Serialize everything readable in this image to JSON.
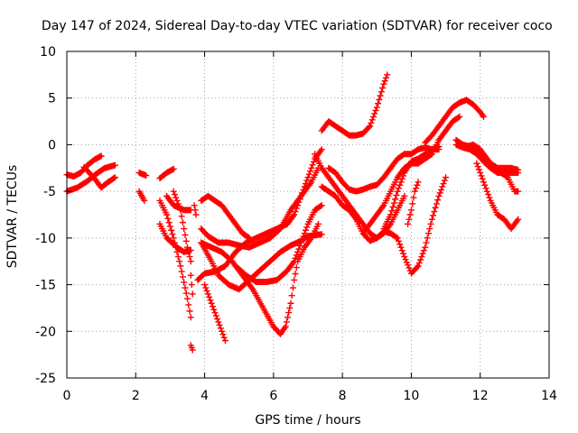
{
  "chart_data": {
    "type": "scatter",
    "title": "Day 147 of 2024, Sidereal Day-to-day VTEC variation (SDTVAR) for receiver coco",
    "xlabel": "GPS time / hours",
    "ylabel": "SDTVAR / TECUs",
    "xlim": [
      0,
      14
    ],
    "ylim": [
      -25,
      10
    ],
    "x_ticks": [
      "0",
      "2",
      "4",
      "6",
      "8",
      "10",
      "12",
      "14"
    ],
    "y_ticks": [
      "10",
      "5",
      "0",
      "-5",
      "-10",
      "-15",
      "-20",
      "-25"
    ],
    "grid": true,
    "marker": "plus",
    "color": "#ff0000",
    "series": [
      {
        "points": [
          [
            0.0,
            -3.2
          ],
          [
            0.2,
            -3.4
          ],
          [
            0.4,
            -3.0
          ],
          [
            0.6,
            -2.2
          ],
          [
            0.8,
            -1.6
          ],
          [
            1.0,
            -1.2
          ]
        ]
      },
      {
        "points": [
          [
            0.0,
            -5.0
          ],
          [
            0.3,
            -4.6
          ],
          [
            0.6,
            -3.9
          ],
          [
            0.9,
            -3.0
          ],
          [
            1.1,
            -2.5
          ],
          [
            1.4,
            -2.2
          ]
        ]
      },
      {
        "points": [
          [
            0.5,
            -2.4
          ],
          [
            0.8,
            -3.6
          ],
          [
            1.0,
            -4.6
          ],
          [
            1.2,
            -4.0
          ],
          [
            1.4,
            -3.5
          ]
        ]
      },
      {
        "points": [
          [
            2.1,
            -3.0
          ],
          [
            2.3,
            -3.3
          ]
        ]
      },
      {
        "points": [
          [
            2.1,
            -5.0
          ],
          [
            2.25,
            -6.0
          ]
        ]
      },
      {
        "points": [
          [
            2.7,
            -3.6
          ],
          [
            2.9,
            -3.0
          ],
          [
            3.1,
            -2.6
          ]
        ]
      },
      {
        "points": [
          [
            2.7,
            -6.0
          ],
          [
            2.9,
            -7.5
          ],
          [
            3.1,
            -10.0
          ],
          [
            3.3,
            -13.0
          ],
          [
            3.5,
            -16.5
          ],
          [
            3.6,
            -18.5
          ]
        ]
      },
      {
        "points": [
          [
            2.7,
            -8.5
          ],
          [
            2.9,
            -10.0
          ],
          [
            3.2,
            -11.0
          ],
          [
            3.4,
            -11.5
          ],
          [
            3.6,
            -11.3
          ]
        ]
      },
      {
        "points": [
          [
            2.9,
            -5.5
          ],
          [
            3.1,
            -6.5
          ],
          [
            3.4,
            -7.0
          ],
          [
            3.6,
            -7.0
          ]
        ]
      },
      {
        "points": [
          [
            3.1,
            -5.0
          ],
          [
            3.3,
            -7.0
          ],
          [
            3.5,
            -11.0
          ],
          [
            3.6,
            -12.5
          ]
        ]
      },
      {
        "points": [
          [
            3.6,
            -14.0
          ],
          [
            3.65,
            -16.0
          ]
        ]
      },
      {
        "points": [
          [
            3.6,
            -21.5
          ],
          [
            3.65,
            -22.0
          ]
        ]
      },
      {
        "points": [
          [
            3.7,
            -6.5
          ],
          [
            3.75,
            -7.5
          ]
        ]
      },
      {
        "points": [
          [
            3.8,
            -14.5
          ],
          [
            4.0,
            -13.8
          ],
          [
            4.3,
            -13.6
          ],
          [
            4.6,
            -13.0
          ],
          [
            4.9,
            -11.5
          ],
          [
            5.2,
            -10.5
          ],
          [
            5.5,
            -10.0
          ],
          [
            5.8,
            -9.5
          ],
          [
            6.1,
            -9.0
          ],
          [
            6.4,
            -8.5
          ],
          [
            6.6,
            -7.5
          ],
          [
            6.8,
            -5.5
          ],
          [
            7.0,
            -3.5
          ],
          [
            7.2,
            -1.5
          ],
          [
            7.4,
            -0.5
          ]
        ]
      },
      {
        "points": [
          [
            3.9,
            -9.0
          ],
          [
            4.1,
            -9.8
          ],
          [
            4.4,
            -10.5
          ],
          [
            4.7,
            -10.5
          ],
          [
            5.0,
            -10.8
          ],
          [
            5.3,
            -11.0
          ],
          [
            5.6,
            -10.5
          ],
          [
            5.9,
            -10.0
          ],
          [
            6.2,
            -9.0
          ],
          [
            6.5,
            -7.0
          ],
          [
            6.8,
            -5.5
          ],
          [
            7.1,
            -4.0
          ],
          [
            7.3,
            -2.5
          ]
        ]
      },
      {
        "points": [
          [
            3.9,
            -10.5
          ],
          [
            4.2,
            -11.0
          ],
          [
            4.5,
            -11.5
          ],
          [
            4.8,
            -12.5
          ],
          [
            5.1,
            -14.0
          ],
          [
            5.4,
            -15.5
          ],
          [
            5.7,
            -17.5
          ],
          [
            6.0,
            -19.5
          ],
          [
            6.2,
            -20.3
          ],
          [
            6.35,
            -19.5
          ],
          [
            6.5,
            -17.0
          ],
          [
            6.6,
            -14.5
          ],
          [
            6.7,
            -12.5
          ],
          [
            6.9,
            -11.0
          ],
          [
            7.1,
            -10.0
          ],
          [
            7.3,
            -8.5
          ]
        ]
      },
      {
        "points": [
          [
            3.9,
            -6.0
          ],
          [
            4.1,
            -5.5
          ],
          [
            4.3,
            -6.0
          ],
          [
            4.5,
            -6.5
          ],
          [
            4.7,
            -7.5
          ],
          [
            4.9,
            -8.5
          ],
          [
            5.1,
            -9.5
          ],
          [
            5.3,
            -10.0
          ]
        ]
      },
      {
        "points": [
          [
            3.9,
            -10.5
          ],
          [
            4.2,
            -12.5
          ],
          [
            4.4,
            -14.0
          ],
          [
            4.7,
            -15.0
          ],
          [
            5.0,
            -15.5
          ],
          [
            5.3,
            -14.5
          ],
          [
            5.6,
            -13.5
          ],
          [
            5.9,
            -12.5
          ],
          [
            6.2,
            -11.5
          ],
          [
            6.5,
            -10.8
          ],
          [
            6.8,
            -10.3
          ],
          [
            7.0,
            -9.8
          ],
          [
            7.4,
            -9.6
          ]
        ]
      },
      {
        "points": [
          [
            4.0,
            -15.0
          ],
          [
            4.2,
            -17.0
          ],
          [
            4.4,
            -19.0
          ],
          [
            4.6,
            -21.0
          ]
        ]
      },
      {
        "points": [
          [
            4.9,
            -13.0
          ],
          [
            5.2,
            -14.0
          ],
          [
            5.5,
            -14.7
          ],
          [
            5.8,
            -14.7
          ],
          [
            6.1,
            -14.5
          ],
          [
            6.4,
            -13.5
          ],
          [
            6.6,
            -12.5
          ],
          [
            6.8,
            -10.5
          ],
          [
            7.0,
            -8.5
          ],
          [
            7.2,
            -7.0
          ],
          [
            7.4,
            -6.5
          ]
        ]
      },
      {
        "points": [
          [
            7.2,
            -1.0
          ],
          [
            7.4,
            -2.5
          ],
          [
            7.6,
            -3.5
          ],
          [
            7.8,
            -4.5
          ],
          [
            8.0,
            -5.5
          ],
          [
            8.2,
            -6.5
          ],
          [
            8.4,
            -7.5
          ],
          [
            8.6,
            -8.5
          ],
          [
            8.8,
            -9.5
          ],
          [
            9.0,
            -10.0
          ],
          [
            9.2,
            -9.5
          ],
          [
            9.4,
            -8.5
          ],
          [
            9.6,
            -7.0
          ],
          [
            9.8,
            -5.5
          ]
        ]
      },
      {
        "points": [
          [
            7.4,
            1.5
          ],
          [
            7.6,
            2.5
          ],
          [
            7.8,
            2.0
          ],
          [
            8.0,
            1.5
          ],
          [
            8.2,
            1.0
          ],
          [
            8.4,
            1.0
          ],
          [
            8.6,
            1.2
          ],
          [
            8.8,
            2.0
          ],
          [
            9.0,
            4.0
          ],
          [
            9.2,
            6.5
          ],
          [
            9.3,
            7.5
          ]
        ]
      },
      {
        "points": [
          [
            7.4,
            -4.5
          ],
          [
            7.6,
            -5.0
          ],
          [
            7.8,
            -5.5
          ],
          [
            8.0,
            -6.5
          ],
          [
            8.2,
            -7.0
          ],
          [
            8.4,
            -8.0
          ],
          [
            8.6,
            -9.5
          ],
          [
            8.8,
            -10.3
          ],
          [
            9.0,
            -10.0
          ],
          [
            9.2,
            -9.3
          ],
          [
            9.4,
            -9.5
          ],
          [
            9.6,
            -10.0
          ],
          [
            9.8,
            -12.0
          ],
          [
            10.0,
            -13.8
          ],
          [
            10.2,
            -13.0
          ],
          [
            10.4,
            -11.0
          ],
          [
            10.6,
            -8.0
          ],
          [
            10.8,
            -5.5
          ],
          [
            11.0,
            -3.5
          ]
        ]
      },
      {
        "points": [
          [
            7.6,
            -2.5
          ],
          [
            7.8,
            -3.0
          ],
          [
            8.0,
            -4.0
          ],
          [
            8.2,
            -4.8
          ],
          [
            8.4,
            -5.0
          ],
          [
            8.6,
            -4.8
          ],
          [
            8.8,
            -4.5
          ],
          [
            9.0,
            -4.3
          ],
          [
            9.2,
            -3.5
          ],
          [
            9.4,
            -2.5
          ],
          [
            9.6,
            -1.5
          ],
          [
            9.8,
            -1.0
          ],
          [
            10.0,
            -1.0
          ],
          [
            10.2,
            -0.5
          ],
          [
            10.4,
            -0.3
          ],
          [
            10.6,
            -0.5
          ],
          [
            10.8,
            -0.2
          ]
        ]
      },
      {
        "points": [
          [
            8.6,
            -9.5
          ],
          [
            8.8,
            -8.5
          ],
          [
            9.0,
            -7.5
          ],
          [
            9.2,
            -6.5
          ],
          [
            9.4,
            -5.0
          ],
          [
            9.6,
            -3.5
          ],
          [
            9.8,
            -2.5
          ],
          [
            10.0,
            -2.0
          ],
          [
            10.2,
            -2.0
          ],
          [
            10.4,
            -1.5
          ],
          [
            10.6,
            -1.0
          ],
          [
            10.8,
            0.5
          ],
          [
            11.0,
            1.5
          ],
          [
            11.2,
            2.5
          ],
          [
            11.4,
            3.0
          ]
        ]
      },
      {
        "points": [
          [
            9.2,
            -9.0
          ],
          [
            9.4,
            -7.5
          ],
          [
            9.6,
            -5.0
          ],
          [
            9.8,
            -3.0
          ],
          [
            10.0,
            -1.8
          ],
          [
            10.2,
            -1.5
          ],
          [
            10.4,
            -1.0
          ],
          [
            10.6,
            -0.5
          ],
          [
            10.8,
            -0.5
          ]
        ]
      },
      {
        "points": [
          [
            9.9,
            -8.5
          ],
          [
            10.0,
            -7.0
          ],
          [
            10.1,
            -5.0
          ],
          [
            10.2,
            -4.0
          ]
        ]
      },
      {
        "points": [
          [
            10.4,
            0.2
          ],
          [
            10.6,
            1.0
          ],
          [
            10.8,
            2.0
          ],
          [
            11.0,
            3.0
          ],
          [
            11.2,
            4.0
          ],
          [
            11.4,
            4.5
          ],
          [
            11.6,
            4.8
          ],
          [
            11.8,
            4.3
          ],
          [
            12.0,
            3.5
          ],
          [
            12.1,
            3.0
          ]
        ]
      },
      {
        "points": [
          [
            11.3,
            0.5
          ],
          [
            11.5,
            0.0
          ],
          [
            11.7,
            -0.2
          ],
          [
            11.9,
            -0.3
          ],
          [
            12.1,
            -1.5
          ],
          [
            12.3,
            -2.0
          ],
          [
            12.5,
            -2.5
          ],
          [
            12.7,
            -2.5
          ],
          [
            12.9,
            -2.5
          ],
          [
            13.1,
            -2.7
          ]
        ]
      },
      {
        "points": [
          [
            11.3,
            0.0
          ],
          [
            11.5,
            -0.3
          ],
          [
            11.7,
            -0.5
          ],
          [
            11.9,
            -1.0
          ],
          [
            12.1,
            -1.8
          ],
          [
            12.3,
            -2.5
          ],
          [
            12.5,
            -3.0
          ],
          [
            12.7,
            -3.0
          ],
          [
            12.9,
            -3.0
          ],
          [
            13.1,
            -3.0
          ]
        ]
      },
      {
        "points": [
          [
            11.4,
            0.0
          ],
          [
            11.6,
            -0.2
          ],
          [
            11.8,
            0.0
          ],
          [
            12.0,
            -0.5
          ],
          [
            12.2,
            -1.5
          ],
          [
            12.4,
            -2.5
          ],
          [
            12.6,
            -3.0
          ],
          [
            12.8,
            -3.5
          ],
          [
            13.0,
            -5.0
          ],
          [
            13.1,
            -5.0
          ]
        ]
      },
      {
        "points": [
          [
            11.9,
            -2.0
          ],
          [
            12.1,
            -4.0
          ],
          [
            12.3,
            -6.0
          ],
          [
            12.5,
            -7.5
          ],
          [
            12.7,
            -8.0
          ],
          [
            12.9,
            -9.0
          ],
          [
            13.1,
            -8.0
          ]
        ]
      }
    ]
  }
}
